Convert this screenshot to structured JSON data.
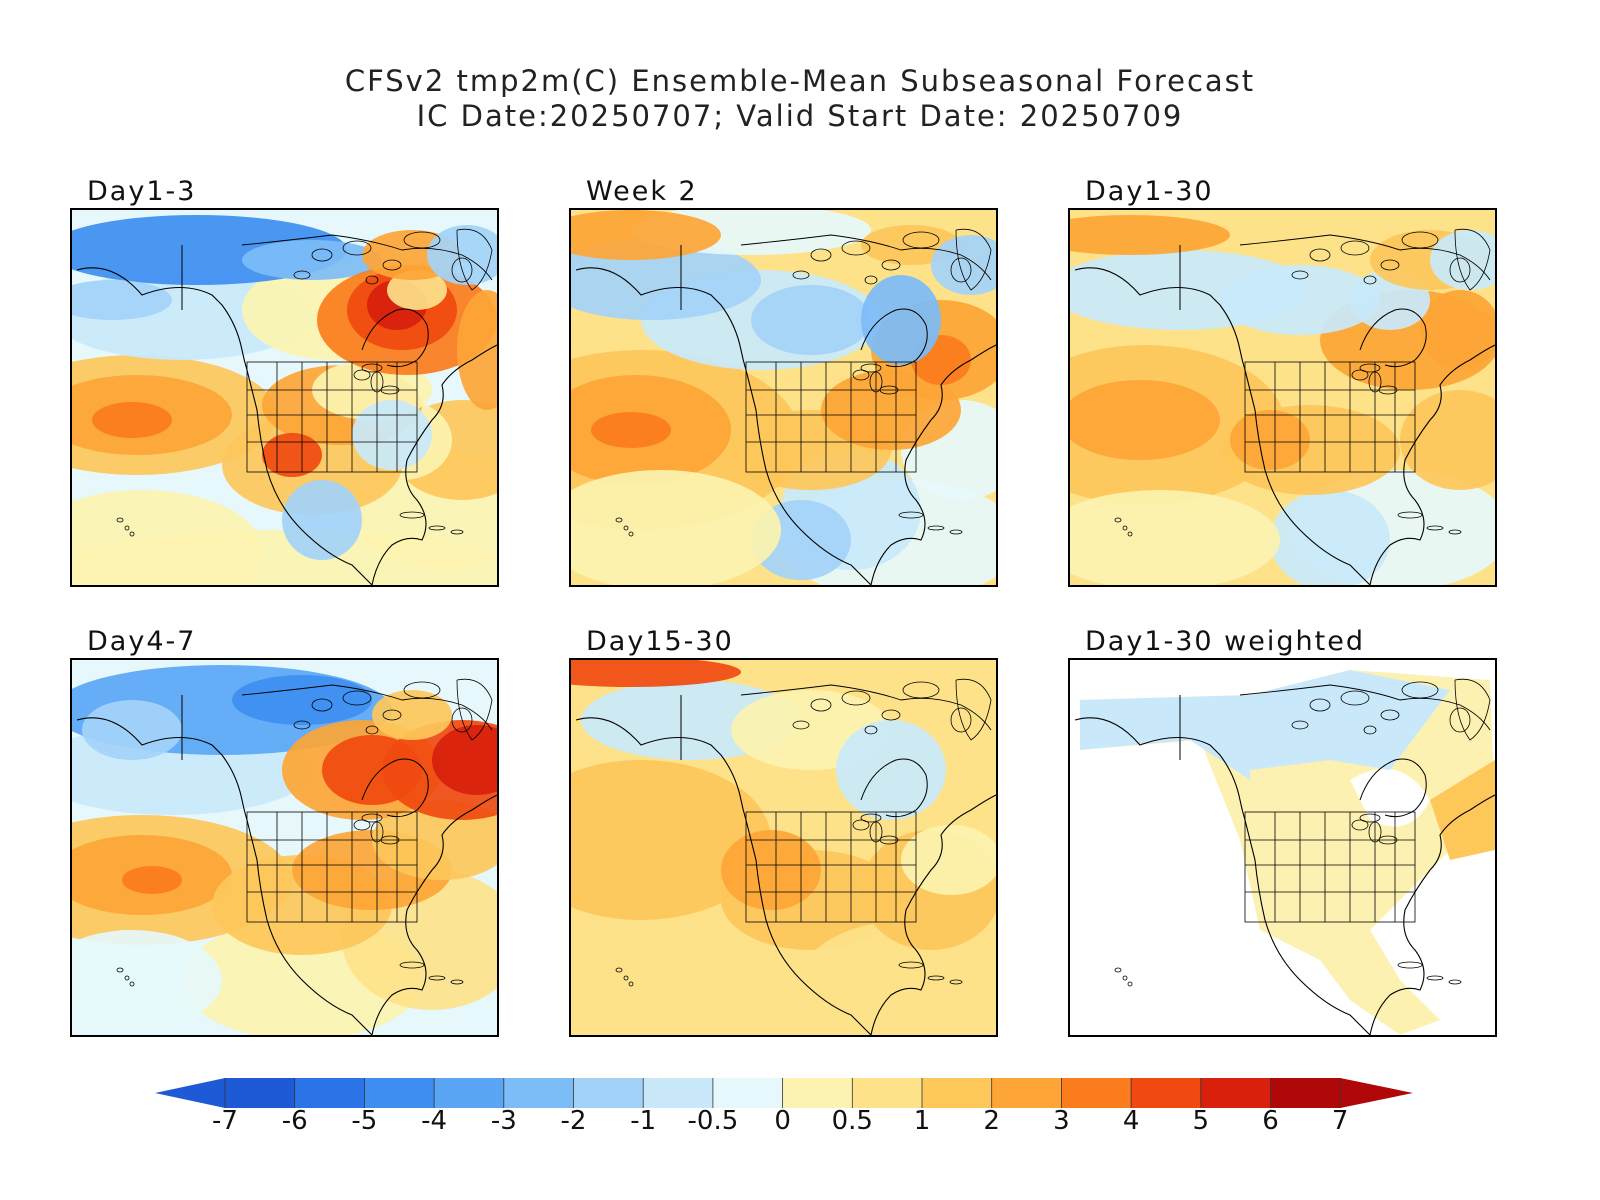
{
  "title": "CFSv2 tmp2m(C) Ensemble-Mean Subseasonal Forecast",
  "subtitle": "IC Date:20250707; Valid Start Date: 20250709",
  "panels": [
    {
      "label": "Day1-3",
      "scheme": 0
    },
    {
      "label": "Week 2",
      "scheme": 1
    },
    {
      "label": "Day1-30",
      "scheme": 2
    },
    {
      "label": "Day4-7",
      "scheme": 3
    },
    {
      "label": "Day15-30",
      "scheme": 4
    },
    {
      "label": "Day1-30 weighted",
      "scheme": 5
    }
  ],
  "colorbar": {
    "ticks": [
      "-7",
      "-6",
      "-5",
      "-4",
      "-3",
      "-2",
      "-1",
      "-0.5",
      "0",
      "0.5",
      "1",
      "2",
      "3",
      "4",
      "5",
      "6",
      "7"
    ],
    "colors": [
      "#1e5ad6",
      "#2b74e8",
      "#3d8ef0",
      "#5aa6f5",
      "#7cbcf7",
      "#a3d2f8",
      "#c9e9fb",
      "#e6f8fb",
      "#fcf3b0",
      "#fde28a",
      "#fdc75a",
      "#fda536",
      "#fb7c1c",
      "#f04a10",
      "#d8200c",
      "#b00808"
    ],
    "below_color": "#1e5ad6",
    "above_color": "#b00808"
  }
}
